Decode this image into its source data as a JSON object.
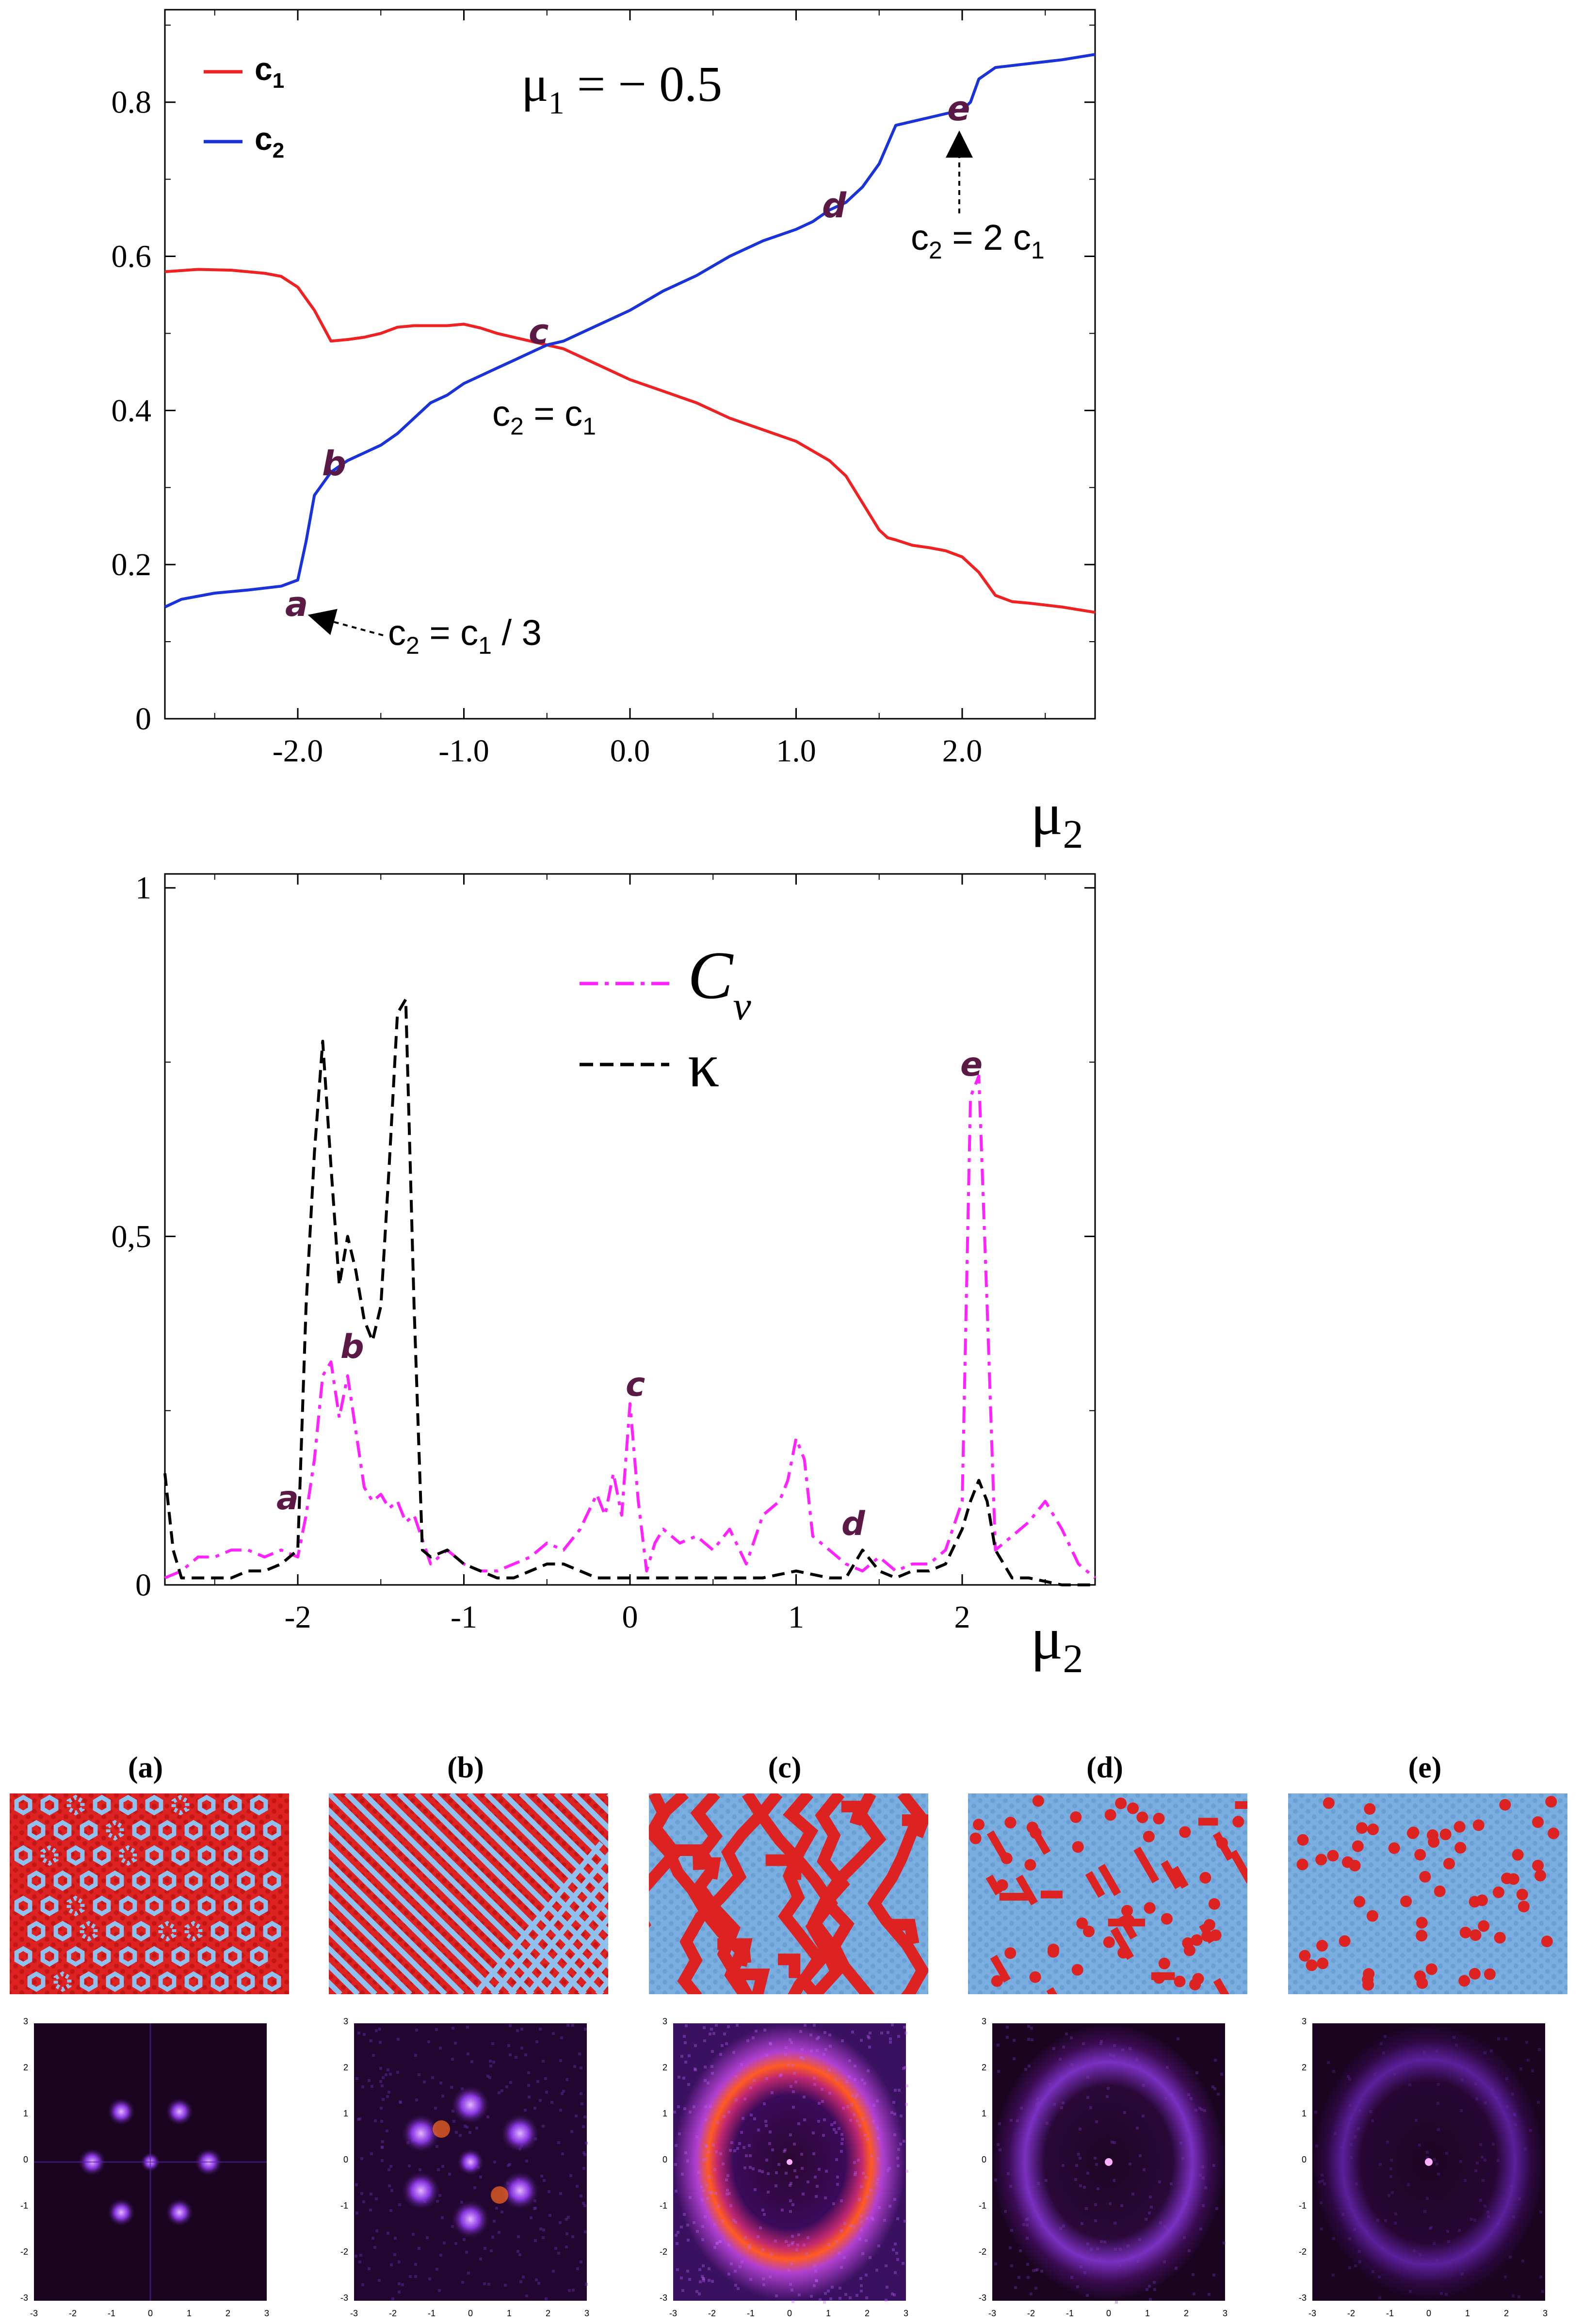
{
  "colors": {
    "c1": "#ee2222",
    "c2": "#1a33d9",
    "cv": "#ff22ff",
    "kappa": "#000000",
    "letter": "#5a1a45",
    "lattice_red": "#dd2222",
    "lattice_blue": "#7aaee0",
    "fft_bg": "#1a0420",
    "fft_glow": "#9a40ff"
  },
  "chart_data": [
    {
      "type": "line",
      "title": "μ1 = − 0.5",
      "title_main": "μ",
      "title_sub": "1",
      "title_rest": " = − 0.5",
      "xlabel_main": "μ",
      "xlabel_sub": "2",
      "xlim": [
        -2.8,
        2.8
      ],
      "ylim": [
        0,
        0.92
      ],
      "xticks": [
        -2.0,
        -1.0,
        0.0,
        1.0,
        2.0
      ],
      "xtick_labels": [
        "-2.0",
        "-1.0",
        "0.0",
        "1.0",
        "2.0"
      ],
      "yticks": [
        0,
        0.2,
        0.4,
        0.6,
        0.8
      ],
      "ytick_labels": [
        "0",
        "0.2",
        "0.4",
        "0.6",
        "0.8"
      ],
      "legend": [
        {
          "label": "c",
          "sub": "1",
          "series": "c1"
        },
        {
          "label": "c",
          "sub": "2",
          "series": "c2"
        }
      ],
      "series": [
        {
          "name": "c1",
          "x": [
            -2.8,
            -2.6,
            -2.4,
            -2.2,
            -2.1,
            -2.0,
            -1.9,
            -1.8,
            -1.7,
            -1.6,
            -1.5,
            -1.4,
            -1.3,
            -1.2,
            -1.1,
            -1.0,
            -0.9,
            -0.8,
            -0.7,
            -0.6,
            -0.5,
            -0.4,
            -0.3,
            -0.2,
            -0.1,
            0.0,
            0.2,
            0.4,
            0.6,
            0.8,
            1.0,
            1.2,
            1.3,
            1.4,
            1.5,
            1.55,
            1.6,
            1.7,
            1.8,
            1.9,
            2.0,
            2.1,
            2.2,
            2.3,
            2.4,
            2.6,
            2.8
          ],
          "y": [
            0.58,
            0.583,
            0.582,
            0.578,
            0.574,
            0.56,
            0.53,
            0.49,
            0.492,
            0.495,
            0.5,
            0.508,
            0.51,
            0.51,
            0.51,
            0.512,
            0.507,
            0.5,
            0.495,
            0.49,
            0.485,
            0.48,
            0.47,
            0.46,
            0.45,
            0.44,
            0.425,
            0.41,
            0.39,
            0.375,
            0.36,
            0.335,
            0.315,
            0.28,
            0.245,
            0.235,
            0.232,
            0.225,
            0.222,
            0.218,
            0.21,
            0.19,
            0.16,
            0.152,
            0.15,
            0.145,
            0.138
          ]
        },
        {
          "name": "c2",
          "x": [
            -2.8,
            -2.7,
            -2.5,
            -2.3,
            -2.1,
            -2.0,
            -1.95,
            -1.9,
            -1.8,
            -1.7,
            -1.6,
            -1.5,
            -1.4,
            -1.3,
            -1.2,
            -1.1,
            -1.0,
            -0.9,
            -0.8,
            -0.7,
            -0.6,
            -0.5,
            -0.4,
            -0.3,
            -0.2,
            -0.1,
            0.0,
            0.2,
            0.4,
            0.6,
            0.8,
            1.0,
            1.1,
            1.2,
            1.3,
            1.4,
            1.5,
            1.6,
            1.7,
            1.8,
            1.9,
            2.0,
            2.05,
            2.1,
            2.2,
            2.4,
            2.6,
            2.8
          ],
          "y": [
            0.145,
            0.155,
            0.163,
            0.167,
            0.172,
            0.18,
            0.23,
            0.29,
            0.32,
            0.335,
            0.345,
            0.355,
            0.37,
            0.39,
            0.41,
            0.42,
            0.435,
            0.445,
            0.455,
            0.465,
            0.475,
            0.485,
            0.49,
            0.5,
            0.51,
            0.52,
            0.53,
            0.555,
            0.575,
            0.6,
            0.62,
            0.635,
            0.645,
            0.66,
            0.67,
            0.69,
            0.72,
            0.77,
            0.775,
            0.78,
            0.785,
            0.79,
            0.8,
            0.83,
            0.845,
            0.85,
            0.855,
            0.862
          ]
        }
      ],
      "annotations": [
        {
          "letter": "a",
          "label_main": "c",
          "label_sub1": "2",
          "label_mid": " = c",
          "label_sub2": "1",
          "label_tail": " / 3"
        },
        {
          "letter": "b"
        },
        {
          "letter": "c",
          "label_main": "c",
          "label_sub1": "2",
          "label_mid": " = c",
          "label_sub2": "1",
          "label_tail": ""
        },
        {
          "letter": "d"
        },
        {
          "letter": "e",
          "label_main": "c",
          "label_sub1": "2",
          "label_mid": " = 2 c",
          "label_sub2": "1",
          "label_tail": ""
        }
      ]
    },
    {
      "type": "line",
      "xlabel_main": "μ",
      "xlabel_sub": "2",
      "xlim": [
        -2.8,
        2.8
      ],
      "ylim": [
        0,
        1.02
      ],
      "xticks": [
        -2,
        -1,
        0,
        1,
        2
      ],
      "xtick_labels": [
        "-2",
        "-1",
        "0",
        "1",
        "2"
      ],
      "yticks": [
        0,
        0.5,
        1
      ],
      "ytick_labels": [
        "0",
        "0,5",
        "1"
      ],
      "legend": [
        {
          "label": "C",
          "sub": "v",
          "series": "Cv"
        },
        {
          "label": "κ",
          "sub": "",
          "series": "kappa"
        }
      ],
      "series": [
        {
          "name": "Cv",
          "x": [
            -2.8,
            -2.7,
            -2.6,
            -2.5,
            -2.4,
            -2.3,
            -2.2,
            -2.1,
            -2.0,
            -1.95,
            -1.9,
            -1.85,
            -1.8,
            -1.75,
            -1.7,
            -1.65,
            -1.6,
            -1.55,
            -1.5,
            -1.45,
            -1.4,
            -1.35,
            -1.3,
            -1.2,
            -1.1,
            -1.0,
            -0.9,
            -0.8,
            -0.7,
            -0.6,
            -0.5,
            -0.4,
            -0.3,
            -0.2,
            -0.15,
            -0.1,
            -0.05,
            0.0,
            0.05,
            0.1,
            0.15,
            0.2,
            0.3,
            0.4,
            0.5,
            0.6,
            0.7,
            0.8,
            0.9,
            0.95,
            1.0,
            1.05,
            1.1,
            1.2,
            1.3,
            1.4,
            1.5,
            1.6,
            1.7,
            1.8,
            1.9,
            2.0,
            2.05,
            2.1,
            2.15,
            2.2,
            2.3,
            2.4,
            2.5,
            2.6,
            2.7,
            2.8
          ],
          "y": [
            0.01,
            0.02,
            0.04,
            0.04,
            0.05,
            0.05,
            0.04,
            0.05,
            0.04,
            0.1,
            0.18,
            0.3,
            0.32,
            0.24,
            0.3,
            0.22,
            0.14,
            0.12,
            0.13,
            0.11,
            0.12,
            0.09,
            0.1,
            0.03,
            0.05,
            0.03,
            0.02,
            0.02,
            0.03,
            0.04,
            0.06,
            0.05,
            0.08,
            0.13,
            0.1,
            0.16,
            0.1,
            0.26,
            0.12,
            0.02,
            0.06,
            0.08,
            0.06,
            0.07,
            0.05,
            0.08,
            0.03,
            0.1,
            0.12,
            0.15,
            0.21,
            0.18,
            0.07,
            0.05,
            0.03,
            0.02,
            0.04,
            0.02,
            0.03,
            0.03,
            0.05,
            0.12,
            0.7,
            0.73,
            0.4,
            0.05,
            0.07,
            0.09,
            0.12,
            0.08,
            0.03,
            0.01
          ]
        },
        {
          "name": "kappa",
          "x": [
            -2.8,
            -2.75,
            -2.7,
            -2.6,
            -2.5,
            -2.4,
            -2.3,
            -2.2,
            -2.1,
            -2.0,
            -1.95,
            -1.9,
            -1.85,
            -1.8,
            -1.75,
            -1.7,
            -1.65,
            -1.6,
            -1.55,
            -1.5,
            -1.45,
            -1.4,
            -1.35,
            -1.3,
            -1.25,
            -1.2,
            -1.1,
            -1.0,
            -0.9,
            -0.8,
            -0.7,
            -0.6,
            -0.5,
            -0.4,
            -0.3,
            -0.2,
            -0.1,
            0.0,
            0.2,
            0.4,
            0.6,
            0.8,
            1.0,
            1.2,
            1.3,
            1.4,
            1.5,
            1.6,
            1.7,
            1.8,
            1.9,
            2.0,
            2.05,
            2.1,
            2.15,
            2.2,
            2.3,
            2.4,
            2.6,
            2.8
          ],
          "y": [
            0.16,
            0.05,
            0.01,
            0.01,
            0.01,
            0.01,
            0.02,
            0.02,
            0.03,
            0.05,
            0.4,
            0.62,
            0.78,
            0.6,
            0.43,
            0.5,
            0.45,
            0.38,
            0.35,
            0.4,
            0.6,
            0.82,
            0.84,
            0.4,
            0.05,
            0.04,
            0.05,
            0.03,
            0.02,
            0.01,
            0.01,
            0.02,
            0.03,
            0.03,
            0.02,
            0.01,
            0.01,
            0.01,
            0.01,
            0.01,
            0.01,
            0.01,
            0.02,
            0.01,
            0.01,
            0.05,
            0.02,
            0.01,
            0.02,
            0.02,
            0.03,
            0.08,
            0.12,
            0.15,
            0.12,
            0.05,
            0.01,
            0.01,
            0.0,
            0.0
          ]
        }
      ],
      "peak_letters": [
        {
          "letter": "a"
        },
        {
          "letter": "b"
        },
        {
          "letter": "c"
        },
        {
          "letter": "d"
        },
        {
          "letter": "e"
        }
      ]
    }
  ],
  "snapshots": {
    "labels": [
      "(a)",
      "(b)",
      "(c)",
      "(d)",
      "(e)"
    ],
    "fft_ticks": [
      "-3",
      "-2",
      "-1",
      "0",
      "1",
      "2",
      "3"
    ]
  }
}
